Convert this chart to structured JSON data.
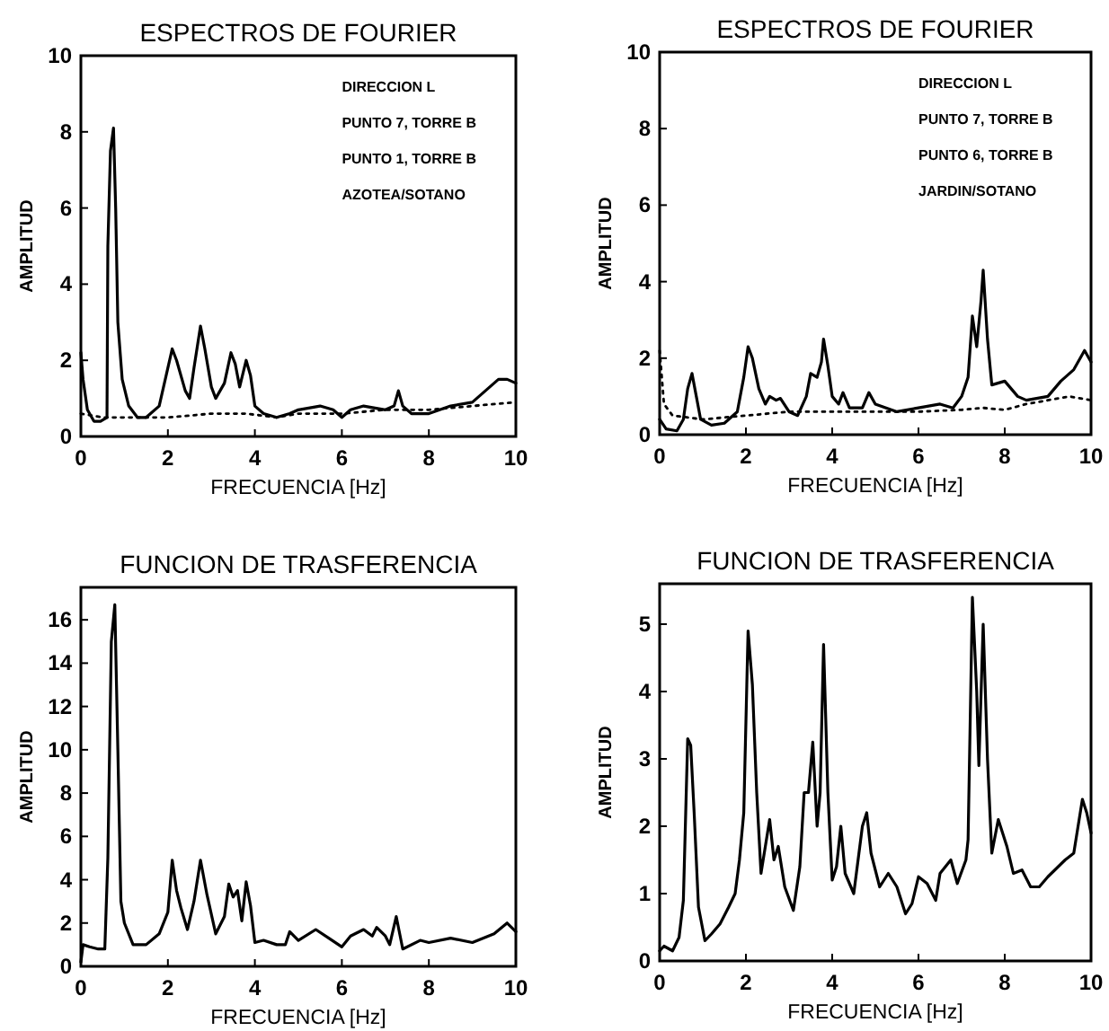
{
  "chart_data": [
    {
      "type": "line",
      "title": "ESPECTROS DE FOURIER",
      "xlabel": "FRECUENCIA [Hz]",
      "ylabel": "AMPLITUD",
      "xlim": [
        0,
        10
      ],
      "xticks": [
        0,
        2,
        4,
        6,
        8,
        10
      ],
      "ylim": [
        0,
        10
      ],
      "yticks": [
        0,
        2,
        4,
        6,
        8,
        10
      ],
      "annotations": [
        "DIRECCION L",
        "PUNTO 7, TORRE B",
        "PUNTO 1, TORRE B",
        "AZOTEA/SOTANO"
      ],
      "series": [
        {
          "color": "#000000",
          "line_style": "solid",
          "x": [
            0,
            0.05,
            0.15,
            0.3,
            0.45,
            0.6,
            0.62,
            0.68,
            0.75,
            0.8,
            0.85,
            0.95,
            1.1,
            1.3,
            1.5,
            1.8,
            2.0,
            2.1,
            2.2,
            2.4,
            2.5,
            2.6,
            2.75,
            2.85,
            3.0,
            3.1,
            3.3,
            3.45,
            3.55,
            3.65,
            3.8,
            3.9,
            4.0,
            4.2,
            4.5,
            4.8,
            5.0,
            5.5,
            5.8,
            6.0,
            6.2,
            6.5,
            7.0,
            7.2,
            7.3,
            7.4,
            7.6,
            8.0,
            8.5,
            9.0,
            9.3,
            9.6,
            9.8,
            10
          ],
          "values": [
            2.2,
            1.5,
            0.7,
            0.4,
            0.4,
            0.5,
            5,
            7.5,
            8.1,
            6,
            3,
            1.5,
            0.8,
            0.5,
            0.5,
            0.8,
            1.8,
            2.3,
            2.0,
            1.2,
            1.0,
            1.8,
            2.9,
            2.3,
            1.3,
            1.0,
            1.4,
            2.2,
            1.9,
            1.3,
            2.0,
            1.6,
            0.8,
            0.6,
            0.5,
            0.6,
            0.7,
            0.8,
            0.7,
            0.5,
            0.7,
            0.8,
            0.7,
            0.8,
            1.2,
            0.8,
            0.6,
            0.6,
            0.8,
            0.9,
            1.2,
            1.5,
            1.5,
            1.4
          ]
        },
        {
          "color": "#000000",
          "line_style": "dotted",
          "x": [
            0,
            0.5,
            1,
            2,
            3,
            3.8,
            4.5,
            5,
            6,
            7,
            8,
            9,
            10
          ],
          "values": [
            0.6,
            0.5,
            0.5,
            0.5,
            0.6,
            0.6,
            0.5,
            0.6,
            0.6,
            0.7,
            0.7,
            0.8,
            0.9
          ]
        }
      ]
    },
    {
      "type": "line",
      "title": "ESPECTROS DE FOURIER",
      "xlabel": "FRECUENCIA [Hz]",
      "ylabel": "AMPLITUD",
      "xlim": [
        0,
        10
      ],
      "xticks": [
        0,
        2,
        4,
        6,
        8,
        10
      ],
      "ylim": [
        0,
        10
      ],
      "yticks": [
        0,
        2,
        4,
        6,
        8,
        10
      ],
      "annotations": [
        "DIRECCION L",
        "PUNTO 7, TORRE B",
        "PUNTO 6, TORRE B",
        "JARDIN/SOTANO"
      ],
      "series": [
        {
          "color": "#000000",
          "line_style": "solid",
          "x": [
            0,
            0.15,
            0.4,
            0.55,
            0.65,
            0.75,
            0.85,
            0.95,
            1.2,
            1.5,
            1.8,
            1.95,
            2.05,
            2.15,
            2.3,
            2.45,
            2.55,
            2.7,
            2.8,
            3.0,
            3.2,
            3.4,
            3.5,
            3.65,
            3.75,
            3.8,
            3.9,
            4.0,
            4.15,
            4.25,
            4.4,
            4.7,
            4.85,
            5.0,
            5.5,
            6.0,
            6.5,
            6.8,
            7.0,
            7.15,
            7.25,
            7.35,
            7.45,
            7.5,
            7.6,
            7.7,
            8.0,
            8.3,
            8.5,
            9.0,
            9.3,
            9.6,
            9.85,
            10
          ],
          "values": [
            0.4,
            0.15,
            0.1,
            0.4,
            1.2,
            1.6,
            1.0,
            0.4,
            0.25,
            0.3,
            0.6,
            1.5,
            2.3,
            2.0,
            1.2,
            0.8,
            1.0,
            0.9,
            0.95,
            0.6,
            0.5,
            1.0,
            1.6,
            1.5,
            1.9,
            2.5,
            1.8,
            1.0,
            0.8,
            1.1,
            0.7,
            0.7,
            1.1,
            0.8,
            0.6,
            0.7,
            0.8,
            0.7,
            1.0,
            1.5,
            3.1,
            2.3,
            3.5,
            4.3,
            2.5,
            1.3,
            1.4,
            1.0,
            0.9,
            1.0,
            1.4,
            1.7,
            2.2,
            1.9
          ]
        },
        {
          "color": "#000000",
          "line_style": "dotted",
          "x": [
            0,
            0.1,
            0.3,
            1,
            2,
            3,
            4,
            5,
            6,
            7,
            7.5,
            8,
            8.5,
            9,
            9.5,
            10
          ],
          "values": [
            2.2,
            0.8,
            0.5,
            0.4,
            0.5,
            0.6,
            0.6,
            0.6,
            0.6,
            0.65,
            0.7,
            0.65,
            0.8,
            0.9,
            1.0,
            0.9
          ]
        }
      ]
    },
    {
      "type": "line",
      "title": "FUNCION DE TRASFERENCIA",
      "xlabel": "FRECUENCIA [Hz]",
      "ylabel": "AMPLITUD",
      "xlim": [
        0,
        10
      ],
      "xticks": [
        0,
        2,
        4,
        6,
        8,
        10
      ],
      "ylim": [
        0,
        17.5
      ],
      "yticks": [
        0,
        2,
        4,
        6,
        8,
        10,
        12,
        14,
        16
      ],
      "series": [
        {
          "color": "#000000",
          "line_style": "solid",
          "x": [
            0,
            0.05,
            0.2,
            0.4,
            0.55,
            0.62,
            0.7,
            0.78,
            0.85,
            0.92,
            1.0,
            1.2,
            1.5,
            1.8,
            2.0,
            2.1,
            2.2,
            2.3,
            2.45,
            2.6,
            2.75,
            2.9,
            3.1,
            3.3,
            3.4,
            3.5,
            3.6,
            3.7,
            3.8,
            3.9,
            4.0,
            4.2,
            4.5,
            4.7,
            4.8,
            5.0,
            5.4,
            5.7,
            6.0,
            6.2,
            6.5,
            6.7,
            6.8,
            7.0,
            7.1,
            7.25,
            7.4,
            7.8,
            8.0,
            8.5,
            9.0,
            9.5,
            9.8,
            10
          ],
          "values": [
            0.2,
            1.0,
            0.9,
            0.8,
            0.8,
            5,
            15,
            16.7,
            10,
            3,
            2,
            1.0,
            1.0,
            1.5,
            2.5,
            4.9,
            3.5,
            2.7,
            1.7,
            3,
            4.9,
            3.3,
            1.5,
            2.3,
            3.8,
            3.2,
            3.5,
            2.1,
            3.9,
            2.8,
            1.1,
            1.2,
            1.0,
            1.0,
            1.6,
            1.2,
            1.7,
            1.3,
            0.9,
            1.4,
            1.7,
            1.4,
            1.8,
            1.4,
            1.0,
            2.3,
            0.8,
            1.2,
            1.1,
            1.3,
            1.1,
            1.5,
            2.0,
            1.6
          ]
        }
      ]
    },
    {
      "type": "line",
      "title": "FUNCION DE TRASFERENCIA",
      "xlabel": "FRECUENCIA [Hz]",
      "ylabel": "AMPLITUD",
      "xlim": [
        0,
        10
      ],
      "xticks": [
        0,
        2,
        4,
        6,
        8,
        10
      ],
      "ylim": [
        0,
        5.6
      ],
      "yticks": [
        0,
        1,
        2,
        3,
        4,
        5
      ],
      "series": [
        {
          "color": "#000000",
          "line_style": "solid",
          "x": [
            0,
            0.1,
            0.3,
            0.45,
            0.55,
            0.65,
            0.72,
            0.8,
            0.9,
            1.05,
            1.2,
            1.4,
            1.6,
            1.75,
            1.85,
            1.95,
            2.05,
            2.15,
            2.25,
            2.35,
            2.45,
            2.55,
            2.65,
            2.75,
            2.9,
            3.1,
            3.25,
            3.35,
            3.45,
            3.55,
            3.65,
            3.72,
            3.8,
            3.9,
            4.0,
            4.1,
            4.2,
            4.3,
            4.5,
            4.7,
            4.8,
            4.9,
            5.1,
            5.3,
            5.5,
            5.7,
            5.85,
            6.0,
            6.2,
            6.4,
            6.5,
            6.75,
            6.9,
            7.1,
            7.15,
            7.25,
            7.35,
            7.4,
            7.5,
            7.6,
            7.7,
            7.85,
            8.05,
            8.2,
            8.4,
            8.6,
            8.8,
            9.0,
            9.4,
            9.6,
            9.8,
            9.9,
            10
          ],
          "values": [
            0.15,
            0.22,
            0.15,
            0.35,
            0.9,
            3.3,
            3.2,
            2.2,
            0.8,
            0.3,
            0.4,
            0.55,
            0.8,
            1.0,
            1.5,
            2.2,
            4.9,
            4.1,
            2.5,
            1.3,
            1.7,
            2.1,
            1.5,
            1.7,
            1.1,
            0.75,
            1.4,
            2.5,
            2.5,
            3.25,
            2.0,
            2.5,
            4.7,
            2.5,
            1.2,
            1.4,
            2.0,
            1.3,
            1.0,
            2.0,
            2.2,
            1.6,
            1.1,
            1.3,
            1.1,
            0.7,
            0.85,
            1.25,
            1.15,
            0.9,
            1.3,
            1.5,
            1.15,
            1.5,
            1.8,
            5.4,
            4.0,
            2.9,
            5.0,
            3.0,
            1.6,
            2.1,
            1.7,
            1.3,
            1.35,
            1.1,
            1.1,
            1.25,
            1.5,
            1.6,
            2.4,
            2.2,
            1.9
          ]
        }
      ]
    }
  ]
}
